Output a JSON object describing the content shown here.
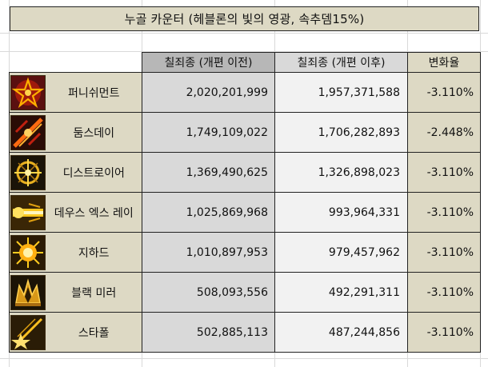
{
  "title": "누골 카운터 (헤블론의 빛의 영광, 속추뎀15%)",
  "headers": {
    "before": "칠죄종 (개편 이전)",
    "after": "칠죄종 (개편 이후)",
    "change": "변화율"
  },
  "rows": [
    {
      "name": "퍼니쉬먼트",
      "icon": "punishment-skill-icon",
      "before": "2,020,201,999",
      "after": "1,957,371,588",
      "change": "-3.110%"
    },
    {
      "name": "둠스데이",
      "icon": "doomsday-skill-icon",
      "before": "1,749,109,022",
      "after": "1,706,282,893",
      "change": "-2.448%"
    },
    {
      "name": "디스트로이어",
      "icon": "destroyer-skill-icon",
      "before": "1,369,490,625",
      "after": "1,326,898,023",
      "change": "-3.110%"
    },
    {
      "name": "데우스 엑스 레이",
      "icon": "deus-ex-ray-skill-icon",
      "before": "1,025,869,968",
      "after": "993,964,331",
      "change": "-3.110%"
    },
    {
      "name": "지하드",
      "icon": "jihad-skill-icon",
      "before": "1,010,897,953",
      "after": "979,457,962",
      "change": "-3.110%"
    },
    {
      "name": "블랙 미러",
      "icon": "black-mirror-skill-icon",
      "before": "508,093,556",
      "after": "492,291,311",
      "change": "-3.110%"
    },
    {
      "name": "스타폴",
      "icon": "starfall-skill-icon",
      "before": "502,885,113",
      "after": "487,244,856",
      "change": "-3.110%"
    }
  ]
}
